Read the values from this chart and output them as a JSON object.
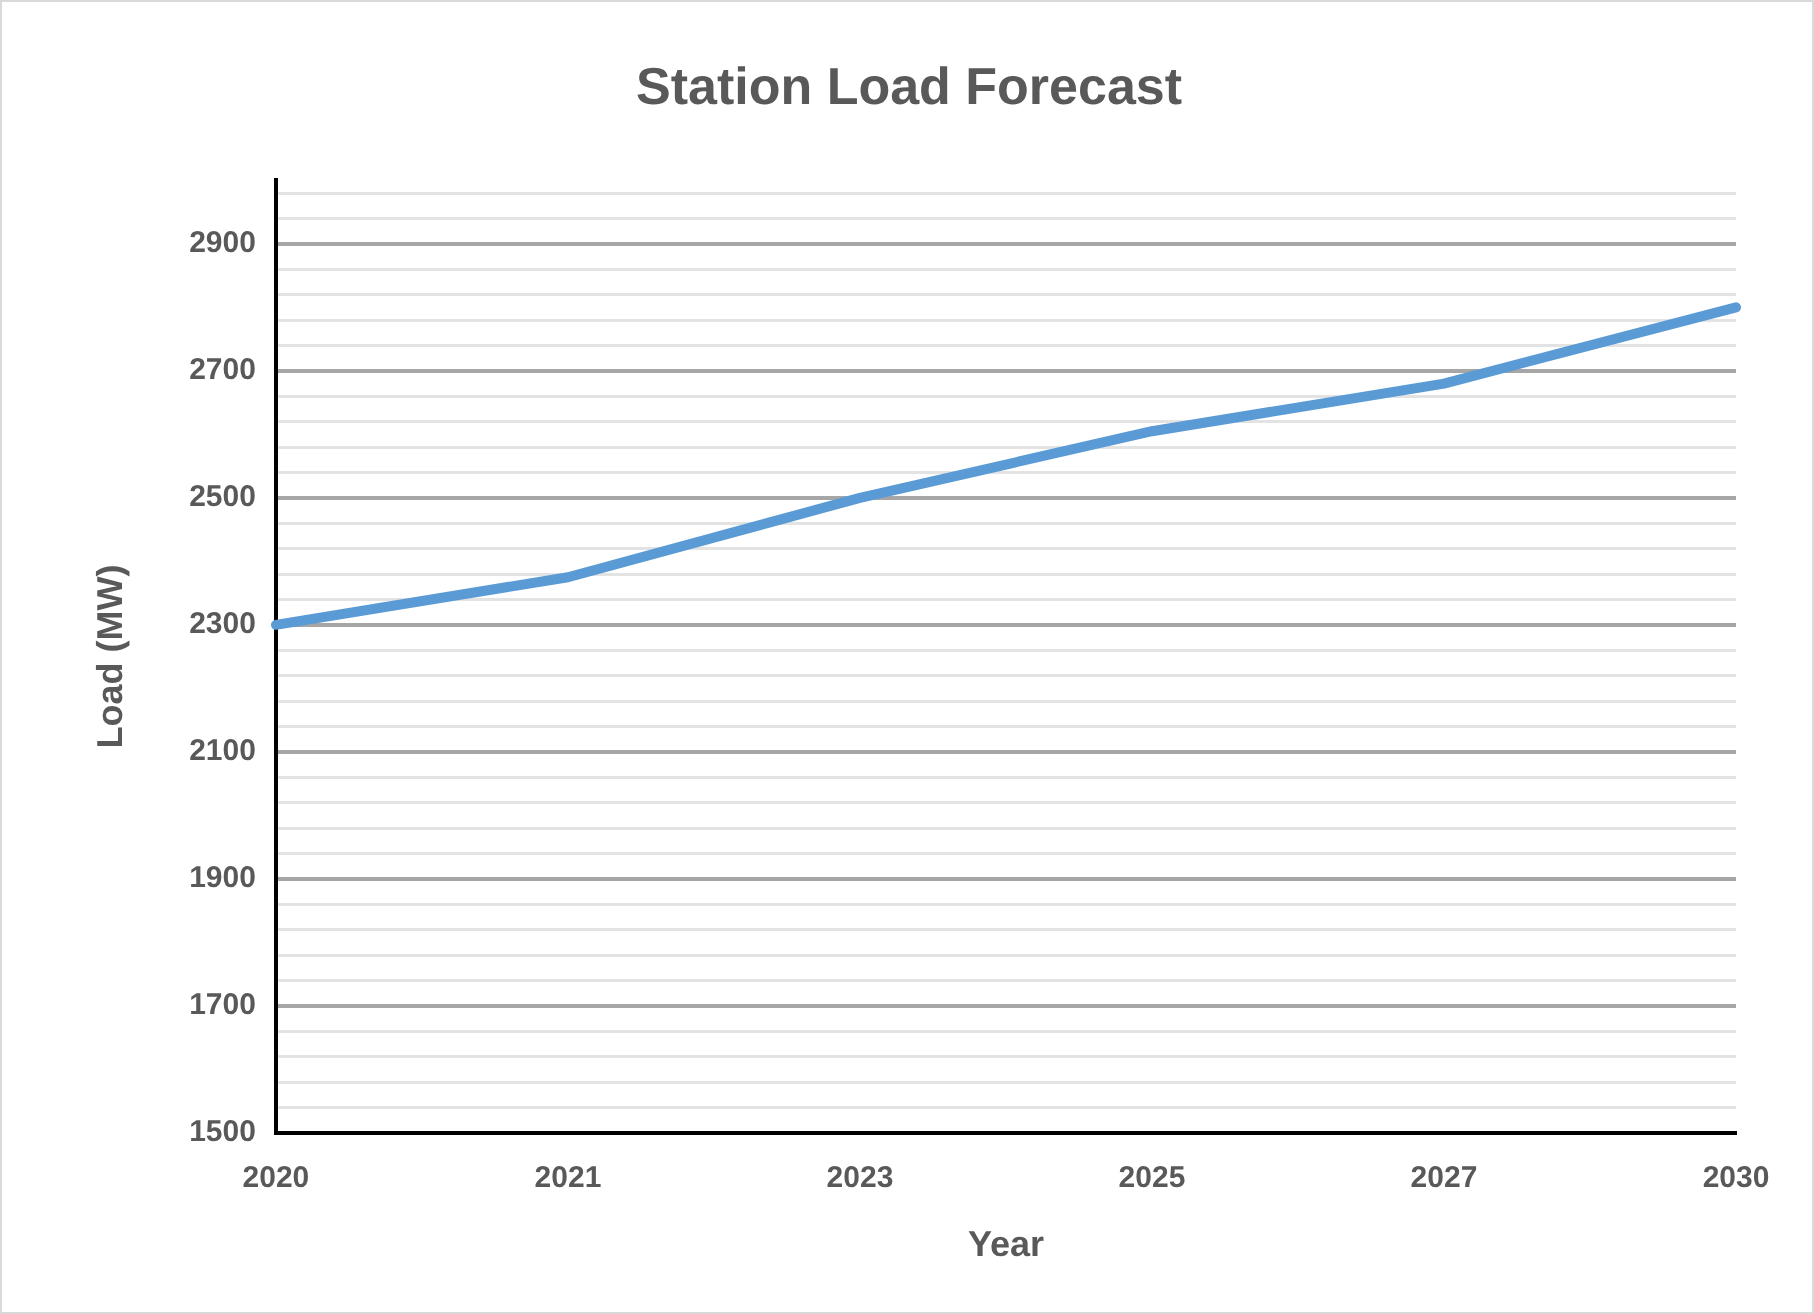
{
  "chart_data": {
    "type": "line",
    "title": "Station Load Forecast",
    "xlabel": "Year",
    "ylabel": "Load (MW)",
    "categories": [
      "2020",
      "2021",
      "2023",
      "2025",
      "2027",
      "2030"
    ],
    "series": [
      {
        "color": "#5b9bd5",
        "values": [
          2300,
          2375,
          2500,
          2605,
          2680,
          2800
        ]
      }
    ],
    "ylim": [
      1500,
      3000
    ],
    "yticks": [
      1500,
      {
        "value": 1540,
        "label": null
      },
      {
        "value": 1580,
        "label": null
      },
      {
        "value": 1620,
        "label": null
      },
      {
        "value": 1660,
        "label": null
      },
      1700,
      {
        "value": 1740,
        "label": null
      },
      {
        "value": 1780,
        "label": null
      },
      {
        "value": 1820,
        "label": null
      },
      {
        "value": 1860,
        "label": null
      },
      1900,
      {
        "value": 1940,
        "label": null
      },
      {
        "value": 1980,
        "label": null
      },
      {
        "value": 2020,
        "label": null
      },
      {
        "value": 2060,
        "label": null
      },
      2100,
      {
        "value": 2140,
        "label": null
      },
      {
        "value": 2180,
        "label": null
      },
      {
        "value": 2220,
        "label": null
      },
      {
        "value": 2260,
        "label": null
      },
      2300,
      {
        "value": 2340,
        "label": null
      },
      {
        "value": 2380,
        "label": null
      },
      {
        "value": 2420,
        "label": null
      },
      {
        "value": 2460,
        "label": null
      },
      2500,
      {
        "value": 2540,
        "label": null
      },
      {
        "value": 2580,
        "label": null
      },
      {
        "value": 2620,
        "label": null
      },
      {
        "value": 2660,
        "label": null
      },
      2700,
      {
        "value": 2740,
        "label": null
      },
      {
        "value": 2780,
        "label": null
      },
      {
        "value": 2820,
        "label": null
      },
      {
        "value": 2860,
        "label": null
      },
      2900,
      {
        "value": 2940,
        "label": null
      },
      {
        "value": 2980,
        "label": null
      }
    ],
    "grid": "y",
    "marker": "none",
    "line_style": "solid",
    "legend": false
  }
}
